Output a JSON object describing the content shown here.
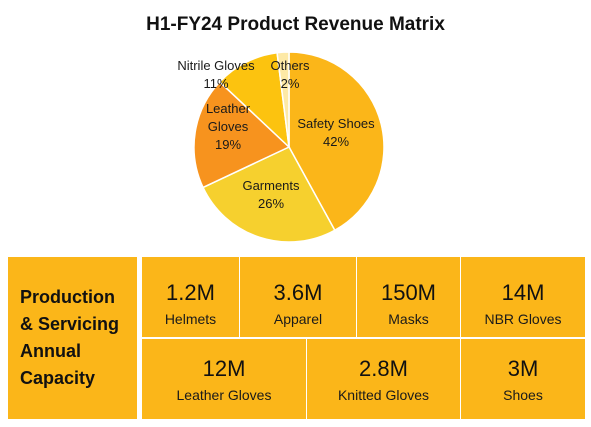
{
  "chart_data": {
    "type": "pie",
    "title": "H1-FY24 Product Revenue Matrix",
    "slices": [
      {
        "name": "Safety Shoes",
        "value": 42,
        "label": "42%",
        "color": "#fbb619"
      },
      {
        "name": "Garments",
        "value": 26,
        "label": "26%",
        "color": "#f6d02e"
      },
      {
        "name": "Leather Gloves",
        "value": 19,
        "label": "19%",
        "color": "#f7931e"
      },
      {
        "name": "Nitrile Gloves",
        "value": 11,
        "label": "11%",
        "color": "#fcc30f"
      },
      {
        "name": "Others",
        "value": 2,
        "label": "2%",
        "color": "#fde9a6"
      }
    ]
  },
  "capacity": {
    "title_lines": [
      "Production",
      "& Servicing",
      "Annual",
      "Capacity"
    ],
    "row1": [
      {
        "value": "1.2M",
        "label": "Helmets"
      },
      {
        "value": "3.6M",
        "label": "Apparel"
      },
      {
        "value": "150M",
        "label": "Masks"
      },
      {
        "value": "14M",
        "label": "NBR Gloves"
      }
    ],
    "row2": [
      {
        "value": "12M",
        "label": "Leather Gloves"
      },
      {
        "value": "2.8M",
        "label": "Knitted Gloves"
      },
      {
        "value": "3M",
        "label": "Shoes"
      }
    ]
  },
  "colors": {
    "panel": "#fbb619",
    "divider": "#ffffff"
  }
}
